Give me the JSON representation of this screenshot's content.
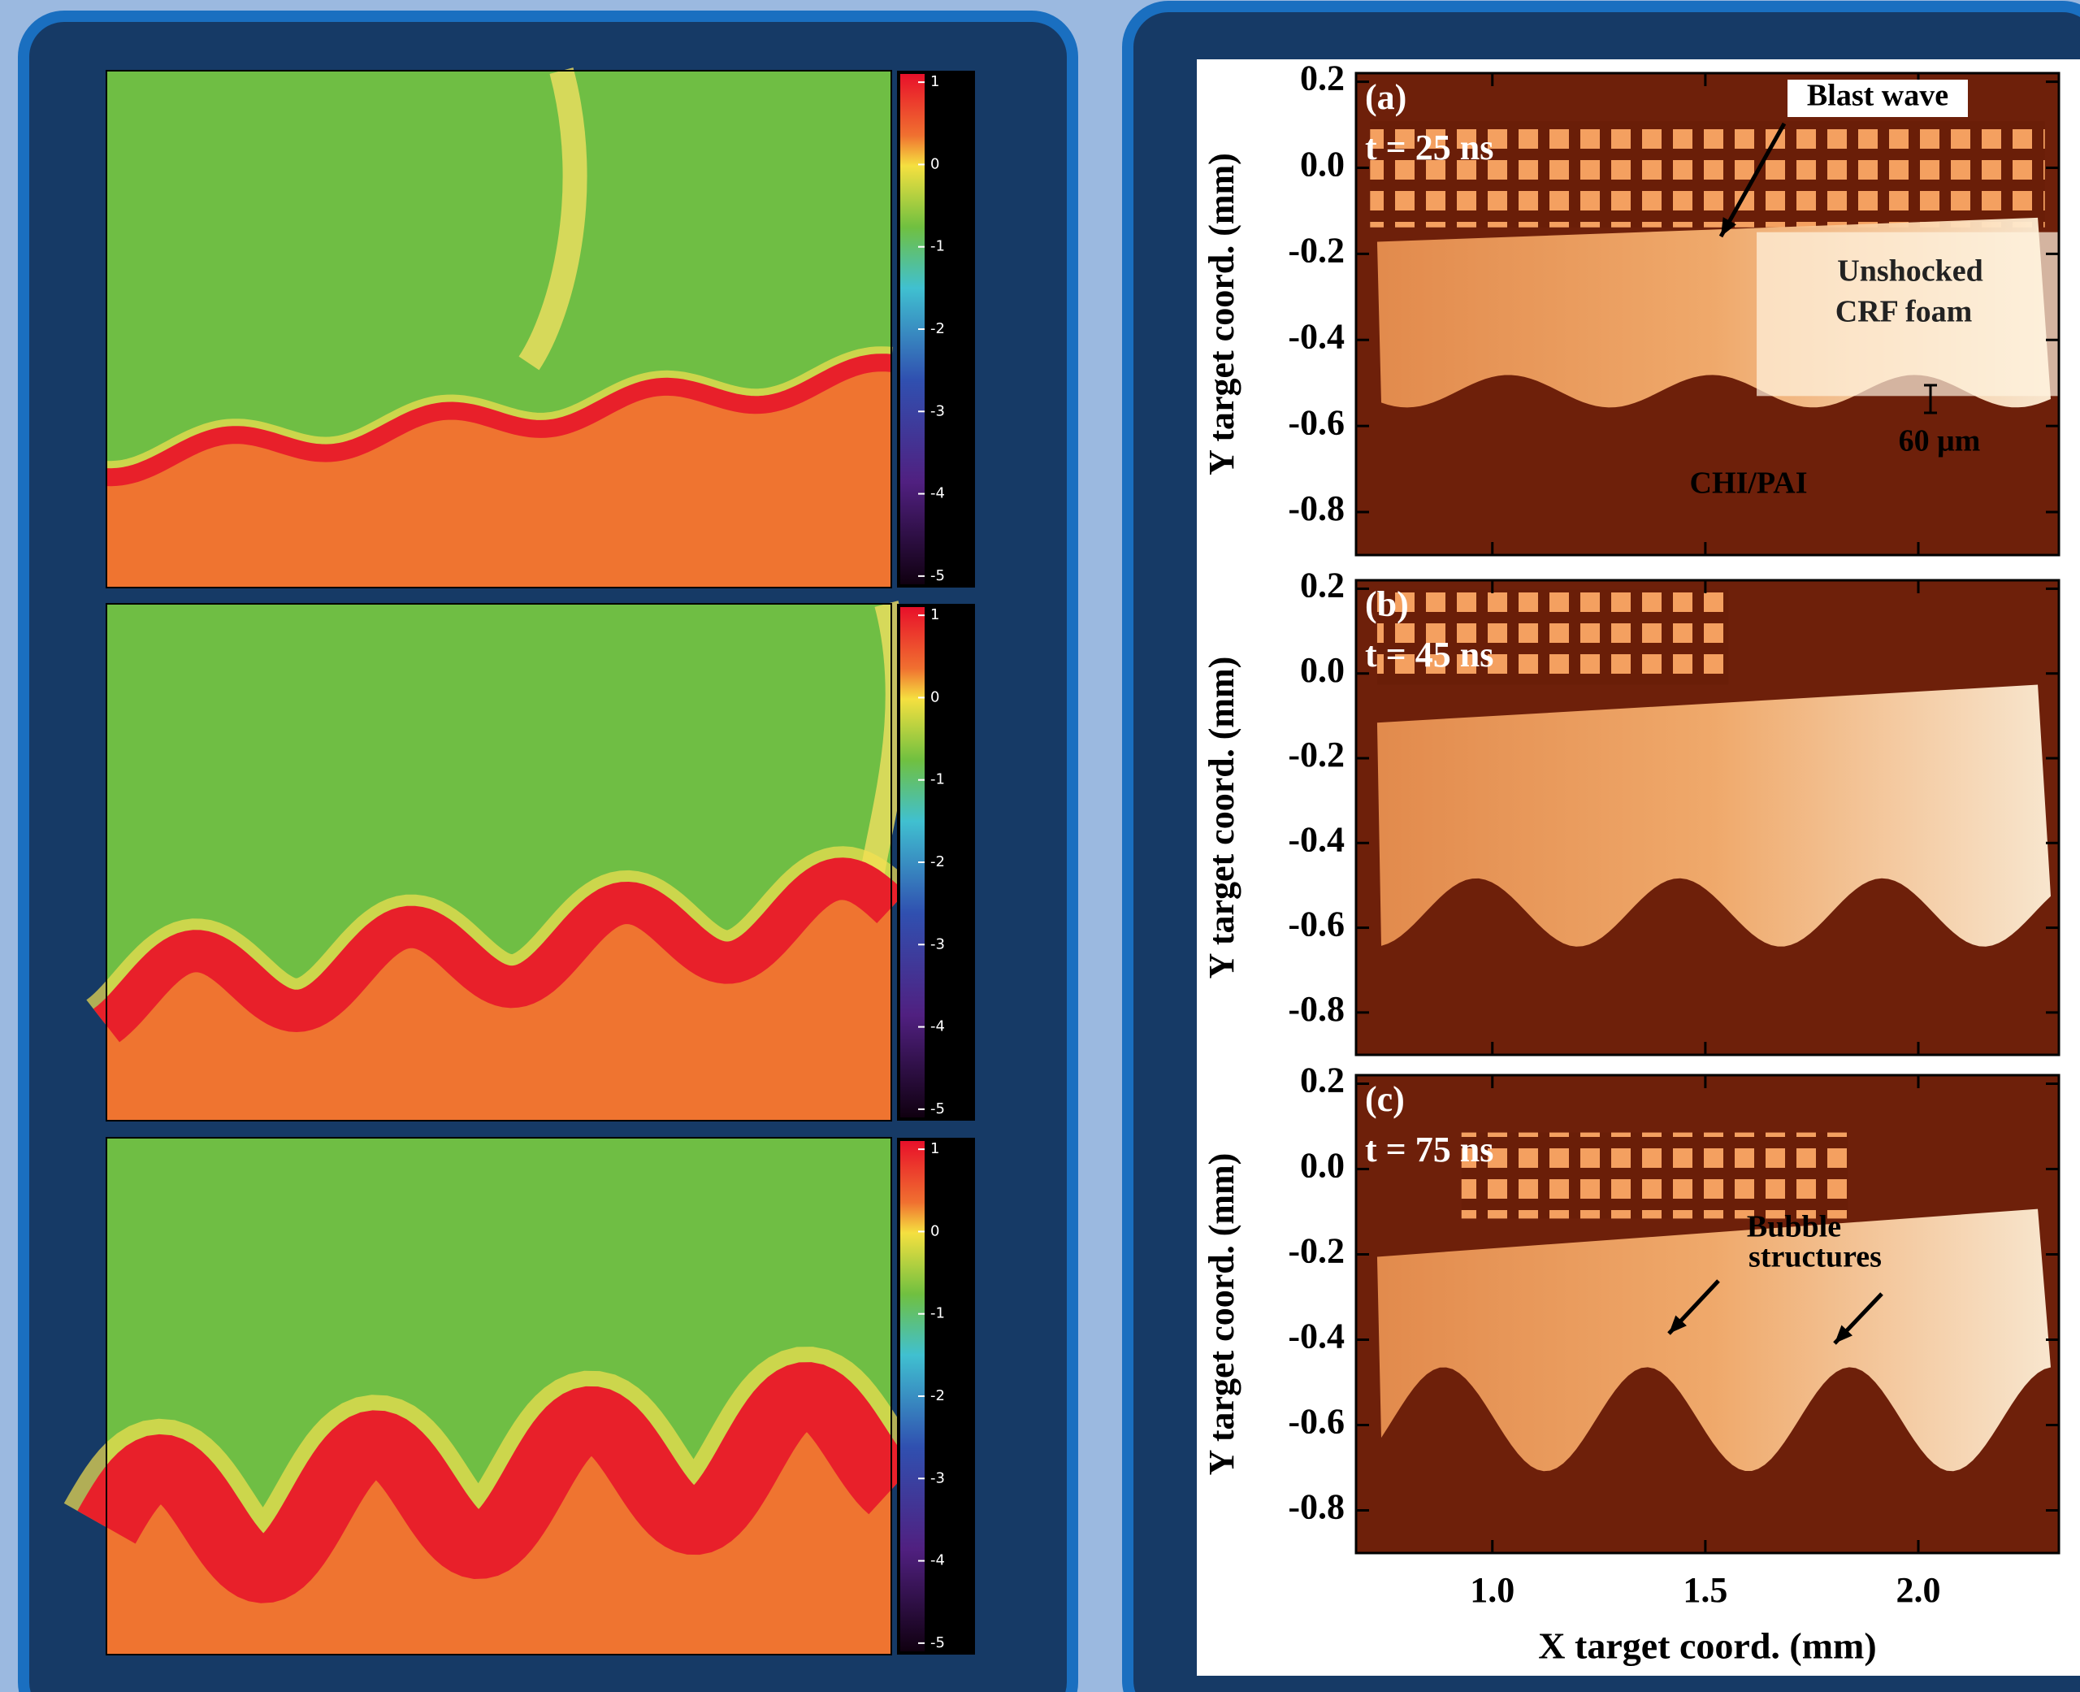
{
  "simulation": {
    "colorbar_lim": [
      -5.1,
      1.1
    ],
    "colorbar_ticks": [
      1,
      0,
      -1,
      -2,
      -3,
      -4,
      -5
    ]
  },
  "experiment": {
    "xlabel": "X target coord. (mm)",
    "ylabel": "Y target coord. (mm)",
    "xlim": [
      0.68,
      2.33
    ],
    "xticks": [
      {
        "value": 1,
        "label": "1.0"
      },
      1.5,
      {
        "value": 2,
        "label": "2.0"
      }
    ],
    "ylim": [
      -0.9,
      0.22
    ],
    "yticks": [
      0.2,
      {
        "value": 0,
        "label": "0.0"
      },
      -0.2,
      -0.4,
      -0.6,
      -0.8
    ],
    "panels": [
      {
        "label": "(a)",
        "time": "t = 25 ns",
        "annotations": [
          "Blast wave",
          "Unshocked",
          "CRF foam",
          "60 μm",
          "CHI/PAI"
        ]
      },
      {
        "label": "(b)",
        "time": "t = 45 ns",
        "annotations": []
      },
      {
        "label": "(c)",
        "time": "t = 75 ns",
        "annotations": [
          "Bubble",
          "structures"
        ]
      }
    ]
  }
}
